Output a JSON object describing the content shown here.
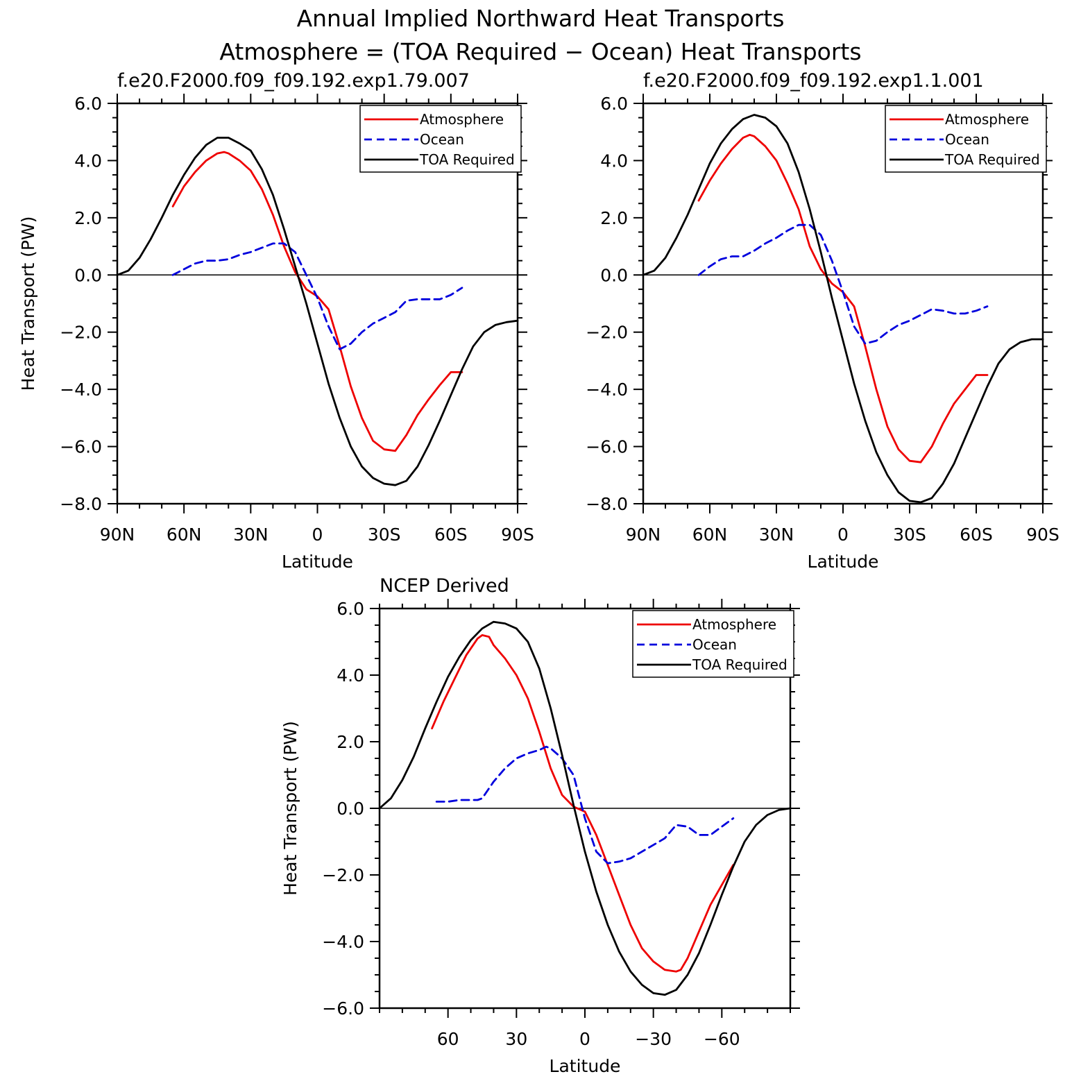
{
  "title_line1": "Annual Implied Northward Heat Transports",
  "title_line2": "Atmosphere = (TOA Required − Ocean) Heat Transports",
  "colors": {
    "atmosphere": "#ee0000",
    "ocean": "#0000dd",
    "toa": "#000000"
  },
  "chart_data": [
    {
      "type": "line",
      "title": "f.e20.F2000.f09_f09.192.exp1.79.007",
      "xlabel": "Latitude",
      "ylabel": "Heat Transport (PW)",
      "xlim": [
        90,
        -90
      ],
      "ylim": [
        -8,
        6
      ],
      "xticks": [
        90,
        60,
        30,
        0,
        -30,
        -60,
        -90
      ],
      "xtick_labels": [
        "90N",
        "60N",
        "30N",
        "0",
        "30S",
        "60S",
        "90S"
      ],
      "yticks": [
        6,
        4,
        2,
        0,
        -2,
        -4,
        -6,
        -8
      ],
      "ytick_labels": [
        "6.0",
        "4.0",
        "2.0",
        "0.0",
        "−2.0",
        "−4.0",
        "−6.0",
        "−8.0"
      ],
      "legend": "top-right",
      "zero_line": true,
      "series": [
        {
          "name": "Atmosphere",
          "style": "solid",
          "color": "#ee0000",
          "x": [
            65,
            60,
            55,
            50,
            45,
            42,
            40,
            35,
            30,
            25,
            20,
            15,
            10,
            5,
            0,
            -5,
            -10,
            -15,
            -20,
            -25,
            -30,
            -35,
            -40,
            -45,
            -50,
            -55,
            -60,
            -65
          ],
          "y": [
            2.4,
            3.1,
            3.6,
            4.0,
            4.25,
            4.3,
            4.25,
            4.0,
            3.65,
            3.0,
            2.1,
            1.0,
            0.1,
            -0.5,
            -0.75,
            -1.2,
            -2.5,
            -3.9,
            -5.0,
            -5.8,
            -6.1,
            -6.15,
            -5.6,
            -4.9,
            -4.35,
            -3.85,
            -3.4,
            -3.4
          ]
        },
        {
          "name": "Ocean",
          "style": "dashed",
          "color": "#0000dd",
          "x": [
            65,
            60,
            55,
            50,
            45,
            40,
            35,
            30,
            25,
            20,
            15,
            10,
            5,
            0,
            -5,
            -10,
            -15,
            -20,
            -25,
            -30,
            -35,
            -40,
            -45,
            -50,
            -55,
            -60,
            -65
          ],
          "y": [
            0.0,
            0.2,
            0.4,
            0.5,
            0.5,
            0.55,
            0.7,
            0.8,
            0.95,
            1.1,
            1.1,
            0.8,
            0.0,
            -0.8,
            -1.8,
            -2.6,
            -2.4,
            -2.0,
            -1.7,
            -1.5,
            -1.3,
            -0.9,
            -0.85,
            -0.85,
            -0.85,
            -0.7,
            -0.45
          ]
        },
        {
          "name": "TOA Required",
          "style": "solid",
          "color": "#000000",
          "x": [
            90,
            85,
            80,
            75,
            70,
            65,
            60,
            55,
            50,
            45,
            40,
            35,
            30,
            25,
            20,
            15,
            10,
            5,
            0,
            -5,
            -10,
            -15,
            -20,
            -25,
            -30,
            -35,
            -40,
            -45,
            -50,
            -55,
            -60,
            -65,
            -70,
            -75,
            -80,
            -85,
            -90
          ],
          "y": [
            0.0,
            0.15,
            0.6,
            1.25,
            2.0,
            2.8,
            3.5,
            4.1,
            4.55,
            4.8,
            4.8,
            4.6,
            4.35,
            3.7,
            2.8,
            1.6,
            0.3,
            -1.0,
            -2.4,
            -3.8,
            -5.0,
            -6.0,
            -6.7,
            -7.1,
            -7.3,
            -7.35,
            -7.2,
            -6.7,
            -5.95,
            -5.1,
            -4.2,
            -3.3,
            -2.5,
            -2.0,
            -1.75,
            -1.65,
            -1.6
          ]
        }
      ]
    },
    {
      "type": "line",
      "title": "f.e20.F2000.f09_f09.192.exp1.1.001",
      "xlabel": "Latitude",
      "ylabel": "",
      "xlim": [
        90,
        -90
      ],
      "ylim": [
        -8,
        6
      ],
      "xticks": [
        90,
        60,
        30,
        0,
        -30,
        -60,
        -90
      ],
      "xtick_labels": [
        "90N",
        "60N",
        "30N",
        "0",
        "30S",
        "60S",
        "90S"
      ],
      "yticks": [
        6,
        4,
        2,
        0,
        -2,
        -4,
        -6,
        -8
      ],
      "ytick_labels": [
        "6.0",
        "4.0",
        "2.0",
        "0.0",
        "−2.0",
        "−4.0",
        "−6.0",
        "−8.0"
      ],
      "legend": "top-right",
      "zero_line": true,
      "series": [
        {
          "name": "Atmosphere",
          "style": "solid",
          "color": "#ee0000",
          "x": [
            65,
            60,
            55,
            50,
            45,
            42,
            40,
            35,
            30,
            25,
            20,
            15,
            10,
            5,
            0,
            -5,
            -10,
            -15,
            -20,
            -25,
            -30,
            -35,
            -40,
            -45,
            -50,
            -55,
            -60,
            -65
          ],
          "y": [
            2.6,
            3.3,
            3.9,
            4.4,
            4.8,
            4.9,
            4.85,
            4.5,
            4.0,
            3.2,
            2.3,
            1.0,
            0.2,
            -0.3,
            -0.6,
            -1.1,
            -2.5,
            -4.0,
            -5.3,
            -6.1,
            -6.5,
            -6.55,
            -6.0,
            -5.2,
            -4.5,
            -4.0,
            -3.5,
            -3.5
          ]
        },
        {
          "name": "Ocean",
          "style": "dashed",
          "color": "#0000dd",
          "x": [
            65,
            60,
            55,
            50,
            45,
            40,
            35,
            30,
            25,
            20,
            15,
            10,
            5,
            0,
            -5,
            -10,
            -15,
            -20,
            -25,
            -30,
            -35,
            -40,
            -45,
            -50,
            -55,
            -60,
            -65
          ],
          "y": [
            0.0,
            0.3,
            0.55,
            0.65,
            0.65,
            0.85,
            1.1,
            1.3,
            1.55,
            1.75,
            1.75,
            1.4,
            0.5,
            -0.6,
            -1.8,
            -2.4,
            -2.3,
            -2.0,
            -1.75,
            -1.6,
            -1.4,
            -1.2,
            -1.25,
            -1.35,
            -1.35,
            -1.25,
            -1.1
          ]
        },
        {
          "name": "TOA Required",
          "style": "solid",
          "color": "#000000",
          "x": [
            90,
            85,
            80,
            75,
            70,
            65,
            60,
            55,
            50,
            45,
            40,
            35,
            30,
            25,
            20,
            15,
            10,
            5,
            0,
            -5,
            -10,
            -15,
            -20,
            -25,
            -30,
            -35,
            -40,
            -45,
            -50,
            -55,
            -60,
            -65,
            -70,
            -75,
            -80,
            -85,
            -90
          ],
          "y": [
            0.0,
            0.15,
            0.6,
            1.3,
            2.1,
            3.0,
            3.9,
            4.6,
            5.1,
            5.45,
            5.6,
            5.5,
            5.2,
            4.6,
            3.6,
            2.3,
            0.8,
            -0.8,
            -2.3,
            -3.8,
            -5.1,
            -6.2,
            -7.0,
            -7.6,
            -7.9,
            -7.95,
            -7.8,
            -7.3,
            -6.6,
            -5.7,
            -4.8,
            -3.9,
            -3.1,
            -2.6,
            -2.35,
            -2.25,
            -2.25
          ]
        }
      ]
    },
    {
      "type": "line",
      "title": "NCEP Derived",
      "xlabel": "Latitude",
      "ylabel": "Heat Transport (PW)",
      "xlim": [
        90,
        -90
      ],
      "ylim": [
        -6,
        6
      ],
      "xticks": [
        60,
        30,
        0,
        -30,
        -60
      ],
      "xtick_labels": [
        "60",
        "30",
        "0",
        "−30",
        "−60"
      ],
      "yticks": [
        6,
        4,
        2,
        0,
        -2,
        -4,
        -6
      ],
      "ytick_labels": [
        "6.0",
        "4.0",
        "2.0",
        "0.0",
        "−2.0",
        "−4.0",
        "−6.0"
      ],
      "legend": "top-right",
      "zero_line": true,
      "series": [
        {
          "name": "Atmosphere",
          "style": "solid",
          "color": "#ee0000",
          "x": [
            67,
            62,
            57,
            52,
            47,
            45,
            42,
            40,
            35,
            30,
            25,
            20,
            15,
            10,
            5,
            0,
            -5,
            -10,
            -15,
            -20,
            -25,
            -30,
            -35,
            -40,
            -42,
            -45,
            -50,
            -55,
            -60,
            -65
          ],
          "y": [
            2.4,
            3.2,
            3.9,
            4.6,
            5.1,
            5.2,
            5.15,
            4.9,
            4.5,
            4.0,
            3.3,
            2.3,
            1.2,
            0.4,
            0.05,
            -0.1,
            -0.8,
            -1.7,
            -2.6,
            -3.5,
            -4.2,
            -4.6,
            -4.85,
            -4.9,
            -4.85,
            -4.5,
            -3.7,
            -2.9,
            -2.3,
            -1.7
          ]
        },
        {
          "name": "Ocean",
          "style": "dashed",
          "color": "#0000dd",
          "x": [
            65,
            60,
            55,
            50,
            47,
            45,
            40,
            35,
            30,
            25,
            20,
            17,
            15,
            10,
            5,
            0,
            -5,
            -10,
            -15,
            -20,
            -25,
            -30,
            -35,
            -40,
            -45,
            -50,
            -55,
            -60,
            -65
          ],
          "y": [
            0.2,
            0.2,
            0.25,
            0.25,
            0.25,
            0.3,
            0.8,
            1.2,
            1.5,
            1.65,
            1.75,
            1.85,
            1.8,
            1.5,
            1.0,
            -0.3,
            -1.3,
            -1.65,
            -1.6,
            -1.5,
            -1.3,
            -1.1,
            -0.9,
            -0.5,
            -0.55,
            -0.8,
            -0.8,
            -0.55,
            -0.3
          ]
        },
        {
          "name": "TOA Required",
          "style": "solid",
          "color": "#000000",
          "x": [
            90,
            85,
            80,
            75,
            70,
            65,
            60,
            55,
            50,
            45,
            40,
            35,
            30,
            25,
            20,
            15,
            10,
            5,
            0,
            -5,
            -10,
            -15,
            -20,
            -25,
            -30,
            -35,
            -40,
            -45,
            -50,
            -55,
            -60,
            -65,
            -70,
            -75,
            -80,
            -85,
            -90
          ],
          "y": [
            0.0,
            0.3,
            0.85,
            1.55,
            2.4,
            3.2,
            3.95,
            4.55,
            5.05,
            5.4,
            5.6,
            5.55,
            5.4,
            5.0,
            4.2,
            3.0,
            1.6,
            0.1,
            -1.3,
            -2.5,
            -3.5,
            -4.3,
            -4.9,
            -5.3,
            -5.55,
            -5.6,
            -5.45,
            -5.0,
            -4.35,
            -3.5,
            -2.6,
            -1.75,
            -1.0,
            -0.5,
            -0.2,
            -0.05,
            0.0
          ]
        }
      ]
    }
  ]
}
